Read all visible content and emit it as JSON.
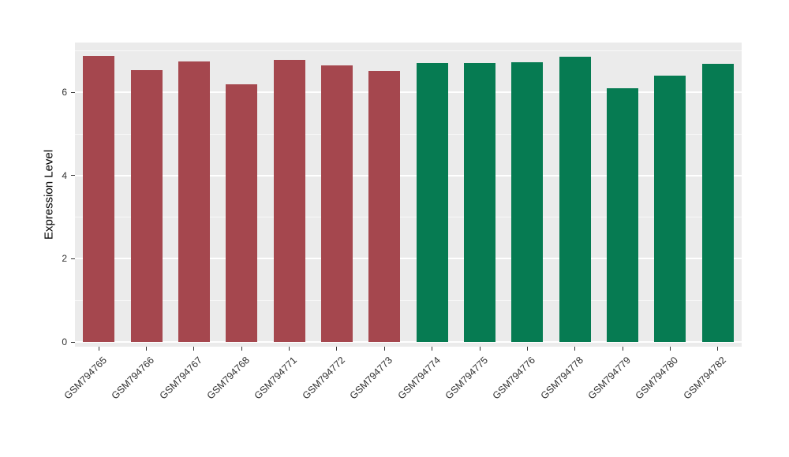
{
  "figure": {
    "background": "#FFFFFF",
    "panel_background": "#EBEBEB",
    "gridline_major_color": "#FFFFFF",
    "axis_text_color": "#303030",
    "group_colors": {
      "group_1": "#A5474E",
      "group_2": "#067B52"
    }
  },
  "chart_data": {
    "type": "bar",
    "title": "",
    "xlabel": "",
    "ylabel": "Expression Level",
    "ylim": [
      0,
      7.2
    ],
    "yticks": [
      0,
      2,
      4,
      6
    ],
    "yticks_minor": [
      1,
      3,
      5,
      7
    ],
    "grid": true,
    "legend": "none",
    "x_label_rotation_deg": -45,
    "categories": [
      "GSM794765",
      "GSM794766",
      "GSM794767",
      "GSM794768",
      "GSM794771",
      "GSM794772",
      "GSM794773",
      "GSM794774",
      "GSM794775",
      "GSM794776",
      "GSM794778",
      "GSM794779",
      "GSM794780",
      "GSM794782"
    ],
    "values": [
      6.87,
      6.53,
      6.74,
      6.19,
      6.78,
      6.66,
      6.52,
      6.71,
      6.7,
      6.73,
      6.86,
      6.11,
      6.4,
      6.69
    ],
    "colors": [
      "#A5474E",
      "#A5474E",
      "#A5474E",
      "#A5474E",
      "#A5474E",
      "#A5474E",
      "#A5474E",
      "#067B52",
      "#067B52",
      "#067B52",
      "#067B52",
      "#067B52",
      "#067B52",
      "#067B52"
    ]
  }
}
